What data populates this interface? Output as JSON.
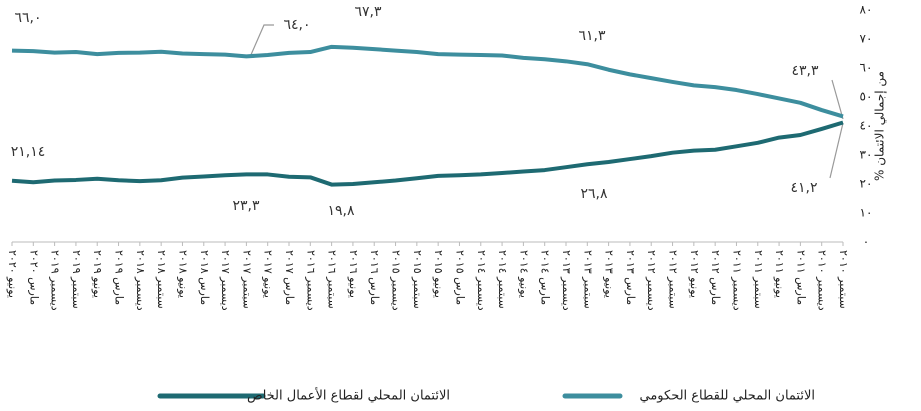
{
  "chart_data": {
    "type": "line",
    "y_axis_label": "% من إجمالي الائتمان",
    "x_reversed": true,
    "categories": [
      "سبتمبر ٢٠١٠",
      "ديسمبر ٢٠١٠",
      "مارس ٢٠١١",
      "يونيو ٢٠١١",
      "سبتمبر ٢٠١١",
      "ديسمبر ٢٠١١",
      "مارس ٢٠١٢",
      "يونيو ٢٠١٢",
      "سبتمبر ٢٠١٢",
      "ديسمبر ٢٠١٢",
      "مارس ٢٠١٣",
      "يونيو ٢٠١٣",
      "سبتمبر ٢٠١٣",
      "ديسمبر ٢٠١٣",
      "مارس ٢٠١٤",
      "يونيو ٢٠١٤",
      "سبتمبر ٢٠١٤",
      "ديسمبر ٢٠١٤",
      "مارس ٢٠١٥",
      "يونيو ٢٠١٥",
      "سبتمبر ٢٠١٥",
      "ديسمبر ٢٠١٥",
      "مارس ٢٠١٦",
      "يونيو ٢٠١٦",
      "سبتمبر ٢٠١٦",
      "ديسمبر ٢٠١٦",
      "مارس ٢٠١٧",
      "يونيو ٢٠١٧",
      "سبتمبر ٢٠١٧",
      "ديسمبر ٢٠١٧",
      "مارس ٢٠١٨",
      "يونيو ٢٠١٨",
      "سبتمبر ٢٠١٨",
      "ديسمبر ٢٠١٨",
      "مارس ٢٠١٩",
      "يونيو ٢٠١٩",
      "سبتمبر ٢٠١٩",
      "ديسمبر ٢٠١٩",
      "مارس ٢٠٢٠",
      "يونيو ٢٠٢٠"
    ],
    "series": [
      {
        "name": "الائتمان المحلي للقطاع الحكومي",
        "color": "#3d8e9e",
        "values": [
          43.3,
          45.5,
          48.0,
          49.5,
          51.0,
          52.4,
          53.4,
          54.0,
          55.2,
          56.5,
          57.8,
          59.4,
          61.3,
          62.3,
          63.0,
          63.5,
          64.3,
          64.5,
          64.6,
          64.8,
          65.5,
          66.0,
          66.5,
          67.0,
          67.3,
          65.5,
          65.2,
          64.5,
          64.0,
          64.6,
          64.8,
          65.0,
          65.6,
          65.3,
          65.2,
          64.8,
          65.5,
          65.3,
          65.8,
          66.0
        ]
      },
      {
        "name": "الائتمان المحلي لقطاع الأعمال الخاص",
        "color": "#1e6a72",
        "values": [
          41.2,
          39.0,
          36.9,
          36.0,
          34.2,
          33.0,
          31.8,
          31.5,
          30.8,
          29.6,
          28.6,
          27.6,
          26.8,
          25.8,
          24.8,
          24.3,
          23.8,
          23.3,
          23.0,
          22.8,
          22.0,
          21.2,
          20.6,
          20.0,
          19.8,
          22.3,
          22.5,
          23.3,
          23.3,
          23.0,
          22.6,
          22.2,
          21.3,
          21.0,
          21.3,
          21.8,
          21.4,
          21.2,
          20.6,
          21.14
        ]
      }
    ],
    "annotations": [
      "٦٦,٠",
      "٦٤,٠",
      "٦٧,٣",
      "٦١,٣",
      "٤٣,٣",
      "٢١,١٤",
      "٢٣,٣",
      "١٩,٨",
      "٢٦,٨",
      "٤١,٢"
    ],
    "ylim": [
      0,
      80
    ],
    "yticks": [
      {
        "value": 0,
        "label": "٠"
      },
      {
        "value": 10,
        "label": "١٠"
      },
      {
        "value": 20,
        "label": "٢٠"
      },
      {
        "value": 30,
        "label": "٣٠"
      },
      {
        "value": 40,
        "label": "٤٠"
      },
      {
        "value": 50,
        "label": "٥٠"
      },
      {
        "value": 60,
        "label": "٦٠"
      },
      {
        "value": 70,
        "label": "٧٠"
      },
      {
        "value": 80,
        "label": "٨٠"
      }
    ]
  }
}
